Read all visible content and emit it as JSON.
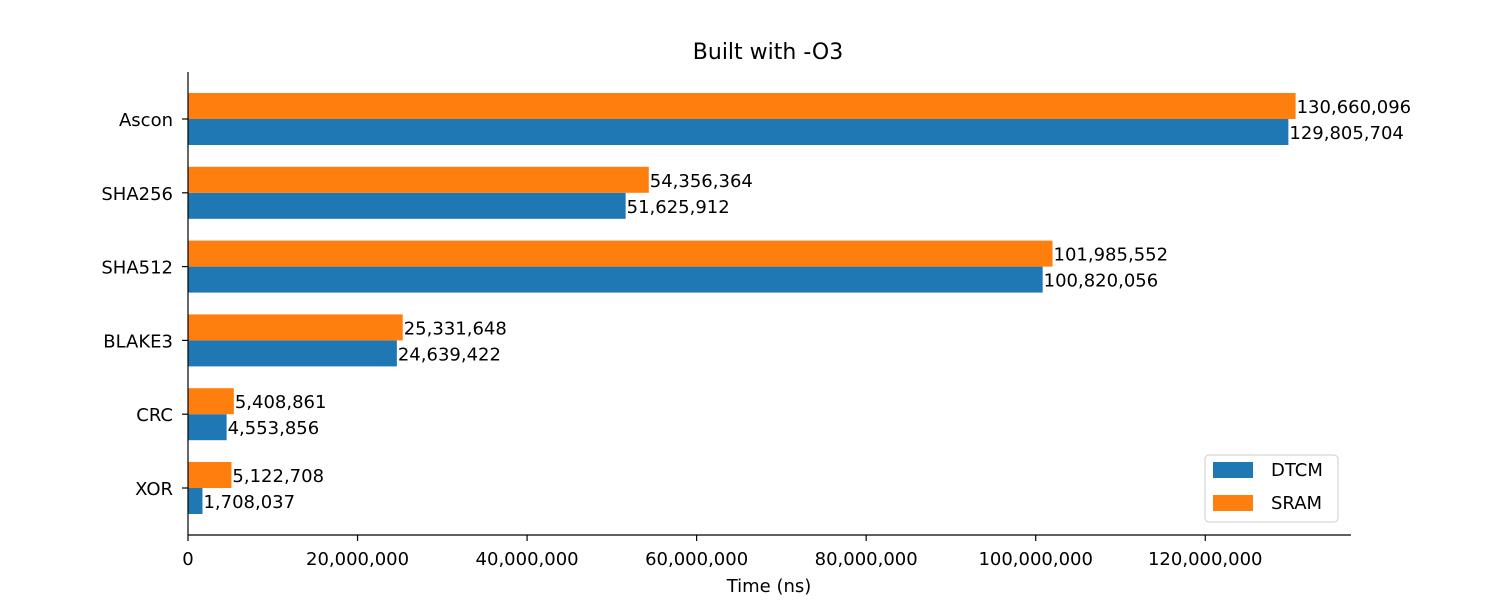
{
  "chart_data": {
    "type": "bar",
    "orientation": "horizontal",
    "title": "Built with -O3",
    "xlabel": "Time (ns)",
    "ylabel": "",
    "categories": [
      "Ascon",
      "SHA256",
      "SHA512",
      "BLAKE3",
      "CRC",
      "XOR"
    ],
    "series": [
      {
        "name": "DTCM",
        "color": "#1f77b4",
        "values": [
          129805704,
          51625912,
          100820056,
          24639422,
          4553856,
          1708037
        ],
        "labels": [
          "129,805,704",
          "51,625,912",
          "100,820,056",
          "24,639,422",
          "4,553,856",
          "1,708,037"
        ]
      },
      {
        "name": "SRAM",
        "color": "#ff7f0e",
        "values": [
          130660096,
          54356364,
          101985552,
          25331648,
          5408861,
          5122708
        ],
        "labels": [
          "130,660,096",
          "54,356,364",
          "101,985,552",
          "25,331,648",
          "5,408,861",
          "5,122,708"
        ]
      }
    ],
    "xticks": [
      0,
      20000000,
      40000000,
      60000000,
      80000000,
      100000000,
      120000000
    ],
    "xtick_labels": [
      "0",
      "20,000,000",
      "40,000,000",
      "60,000,000",
      "80,000,000",
      "100,000,000",
      "120,000,000"
    ],
    "xlim": [
      0,
      137193101
    ],
    "grid": false,
    "legend_position": "lower-right"
  }
}
